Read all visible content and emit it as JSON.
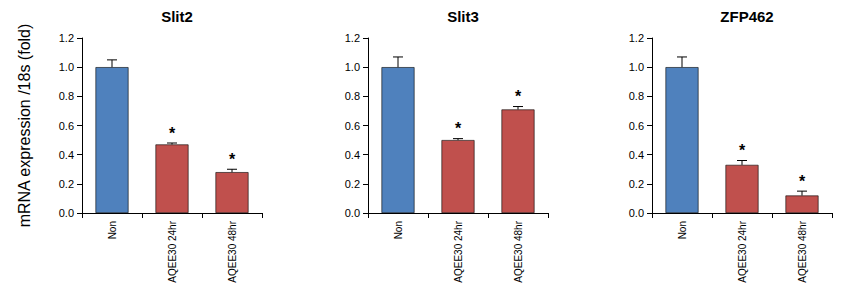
{
  "chart_data": [
    {
      "type": "bar",
      "title": "Slit2",
      "ylabel": "mRNA expression /18s (fold)",
      "categories": [
        "Non",
        "AQEE30 24hr",
        "AQEE30 48hr"
      ],
      "values": [
        1.0,
        0.47,
        0.28
      ],
      "errors": [
        0.05,
        0.01,
        0.02
      ],
      "significance": [
        null,
        "*",
        "*"
      ],
      "colors": [
        "#4f81bd",
        "#c0504d",
        "#c0504d"
      ],
      "ylim": [
        0,
        1.2
      ],
      "yticks": [
        {
          "value": 0,
          "label": "0.0"
        },
        0.2,
        0.4,
        0.6,
        0.8,
        {
          "value": 1,
          "label": "1.0"
        },
        1.2
      ],
      "grid": false
    },
    {
      "type": "bar",
      "title": "Slit3",
      "categories": [
        "Non",
        "AQEE30 24hr",
        "AQEE30 48hr"
      ],
      "values": [
        1.0,
        0.5,
        0.71
      ],
      "errors": [
        0.07,
        0.01,
        0.02
      ],
      "significance": [
        null,
        "*",
        "*"
      ],
      "colors": [
        "#4f81bd",
        "#c0504d",
        "#c0504d"
      ],
      "ylim": [
        0,
        1.2
      ],
      "yticks": [
        {
          "value": 0,
          "label": "0.0"
        },
        0.2,
        0.4,
        0.6,
        0.8,
        {
          "value": 1,
          "label": "1.0"
        },
        1.2
      ],
      "grid": false
    },
    {
      "type": "bar",
      "title": "ZFP462",
      "categories": [
        "Non",
        "AQEE30 24hr",
        "AQEE30 48hr"
      ],
      "values": [
        1.0,
        0.33,
        0.12
      ],
      "errors": [
        0.07,
        0.03,
        0.03
      ],
      "significance": [
        null,
        "*",
        "*"
      ],
      "colors": [
        "#4f81bd",
        "#c0504d",
        "#c0504d"
      ],
      "ylim": [
        0,
        1.2
      ],
      "yticks": [
        {
          "value": 0,
          "label": "0.0"
        },
        0.2,
        0.4,
        0.6,
        0.8,
        {
          "value": 1,
          "label": "1.0"
        },
        1.2
      ],
      "grid": false
    }
  ]
}
